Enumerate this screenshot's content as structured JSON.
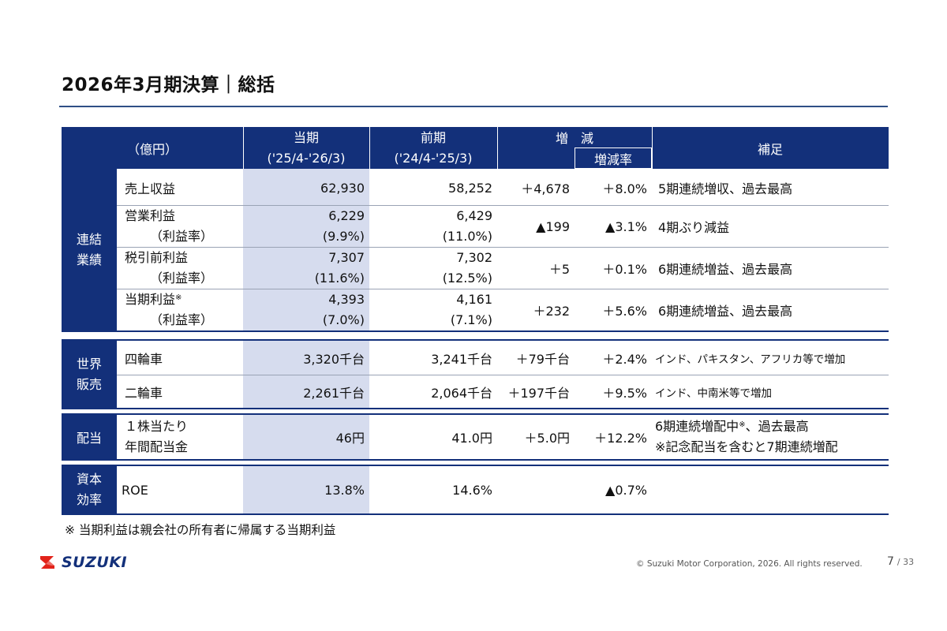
{
  "title": "2026年3月期決算｜総括",
  "header": {
    "unit": "（億円）",
    "current_line1": "当期",
    "current_line2": "('25/4-'26/3)",
    "prior_line1": "前期",
    "prior_line2": "('24/4-'25/3)",
    "change": "増　減",
    "change_rate": "増減率",
    "note": "補足"
  },
  "consolidated": {
    "group": [
      "連結",
      "業績"
    ],
    "rows": [
      {
        "label": "売上収益",
        "sub_label": "",
        "current": "62,930",
        "current_sub": "",
        "prior": "58,252",
        "prior_sub": "",
        "change": "＋4,678",
        "rate": "＋8.0%",
        "note": "5期連続増収、過去最高"
      },
      {
        "label": "営業利益",
        "sub_label": "（利益率）",
        "current": "6,229",
        "current_sub": "(9.9%)",
        "prior": "6,429",
        "prior_sub": "(11.0%)",
        "change": "▲199",
        "rate": "▲3.1%",
        "note": "4期ぶり減益"
      },
      {
        "label": "税引前利益",
        "sub_label": "（利益率）",
        "current": "7,307",
        "current_sub": "(11.6%)",
        "prior": "7,302",
        "prior_sub": "(12.5%)",
        "change": "＋5",
        "rate": "＋0.1%",
        "note": "6期連続増益、過去最高"
      },
      {
        "label": "当期利益",
        "label_mark": "※",
        "sub_label": "（利益率）",
        "current": "4,393",
        "current_sub": "(7.0%)",
        "prior": "4,161",
        "prior_sub": "(7.1%)",
        "change": "＋232",
        "rate": "＋5.6%",
        "note": "6期連続増益、過去最高"
      }
    ]
  },
  "sales": {
    "group": [
      "世界",
      "販売"
    ],
    "rows": [
      {
        "label": "四輪車",
        "current": "3,320千台",
        "prior": "3,241千台",
        "change": "＋79千台",
        "rate": "＋2.4%",
        "note": "インド、パキスタン、アフリカ等で増加"
      },
      {
        "label": "二輪車",
        "current": "2,261千台",
        "prior": "2,064千台",
        "change": "＋197千台",
        "rate": "＋9.5%",
        "note": "インド、中南米等で増加"
      }
    ]
  },
  "dividend": {
    "group": "配当",
    "label1": "１株当たり",
    "label2": "年間配当金",
    "current": "46円",
    "prior": "41.0円",
    "change": "＋5.0円",
    "rate": "＋12.2%",
    "note1": "6期連続増配中",
    "note1_mark": "※",
    "note1_tail": "、過去最高",
    "note2": "※記念配当を含むと7期連続増配"
  },
  "efficiency": {
    "group": [
      "資本",
      "効率"
    ],
    "label": "ROE",
    "current": "13.8%",
    "prior": "14.6%",
    "change": "",
    "rate": "▲0.7%",
    "note": ""
  },
  "footnote": "※ 当期利益は親会社の所有者に帰属する当期利益",
  "footer": {
    "logo_text": "SUZUKI",
    "copyright": "© Suzuki Motor Corporation, 2026. All rights reserved.",
    "page": "7",
    "total": "/ 33"
  },
  "colors": {
    "navy": "#13307a",
    "current_col": "#d6dcee"
  }
}
